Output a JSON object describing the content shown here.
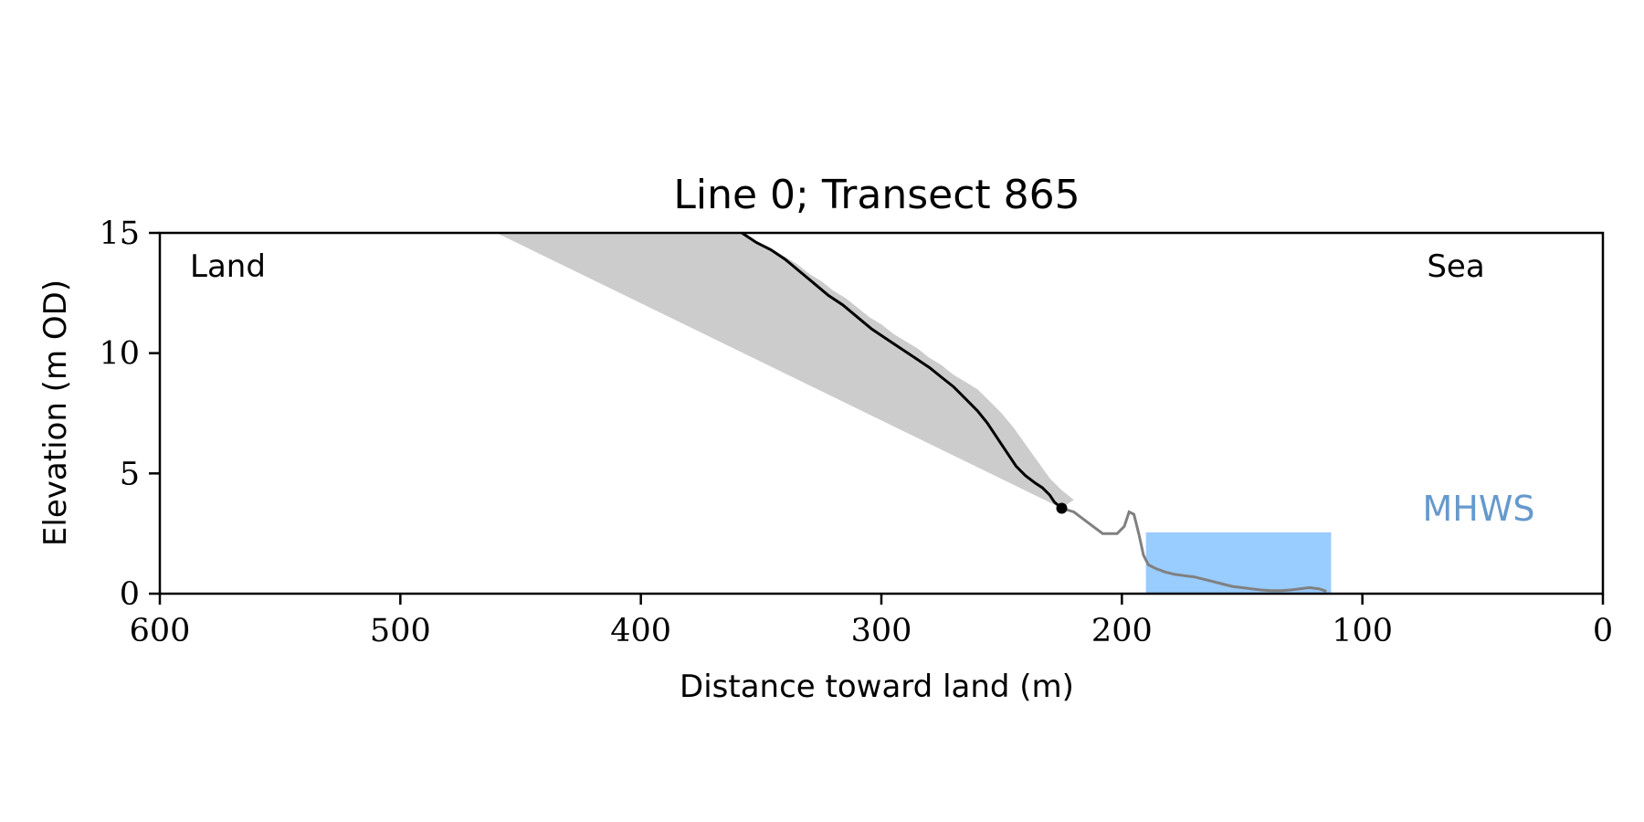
{
  "chart_data": {
    "type": "line",
    "title": "Line 0; Transect 865",
    "xlabel": "Distance toward land (m)",
    "ylabel": "Elevation (m OD)",
    "xlim": [
      600,
      0
    ],
    "ylim": [
      0,
      15
    ],
    "x_ticks": [
      600,
      500,
      400,
      300,
      200,
      100,
      0
    ],
    "y_ticks": [
      0,
      5,
      10,
      15
    ],
    "grid": false,
    "annotations": {
      "left": "Land",
      "right": "Sea",
      "mhws_label": "MHWS"
    },
    "mhws": {
      "x_start": 190,
      "x_end": 113,
      "elevation": 2.55
    },
    "marker_point": {
      "x": 225,
      "y": 3.55
    },
    "shaded_area": {
      "upper": [
        [
          358,
          15
        ],
        [
          355,
          14.8
        ],
        [
          350,
          14.5
        ],
        [
          345,
          14.3
        ],
        [
          340,
          14.0
        ],
        [
          335,
          13.7
        ],
        [
          330,
          13.3
        ],
        [
          325,
          13.0
        ],
        [
          320,
          12.6
        ],
        [
          315,
          12.3
        ],
        [
          310,
          11.9
        ],
        [
          305,
          11.5
        ],
        [
          300,
          11.2
        ],
        [
          295,
          10.8
        ],
        [
          290,
          10.5
        ],
        [
          285,
          10.2
        ],
        [
          280,
          9.8
        ],
        [
          275,
          9.5
        ],
        [
          270,
          9.1
        ],
        [
          265,
          8.8
        ],
        [
          260,
          8.5
        ],
        [
          255,
          8.0
        ],
        [
          250,
          7.5
        ],
        [
          245,
          6.9
        ],
        [
          240,
          6.2
        ],
        [
          235,
          5.5
        ],
        [
          230,
          4.8
        ],
        [
          225,
          4.3
        ],
        [
          220,
          3.9
        ],
        [
          225,
          3.55
        ]
      ],
      "lower": [
        [
          225,
          3.55
        ],
        [
          460,
          15
        ]
      ]
    },
    "series": [
      {
        "role": "cliff profile",
        "color": "#000000",
        "x": [
          358,
          352,
          346,
          340,
          334,
          328,
          322,
          316,
          310,
          304,
          298,
          292,
          286,
          280,
          275,
          270,
          265,
          260,
          256,
          252,
          248,
          244,
          240,
          236,
          233,
          230,
          228,
          225
        ],
        "y": [
          15.0,
          14.6,
          14.3,
          13.9,
          13.4,
          12.9,
          12.4,
          12.0,
          11.5,
          11.0,
          10.6,
          10.2,
          9.8,
          9.4,
          9.0,
          8.6,
          8.1,
          7.6,
          7.1,
          6.5,
          5.9,
          5.3,
          4.9,
          4.6,
          4.4,
          4.1,
          3.8,
          3.55
        ]
      },
      {
        "role": "foreshore profile",
        "color": "#808080",
        "x": [
          225,
          220,
          216,
          212,
          208,
          205,
          202,
          199,
          197,
          195,
          193,
          191,
          189,
          186,
          182,
          178,
          174,
          170,
          166,
          162,
          158,
          154,
          150,
          146,
          142,
          138,
          134,
          130,
          126,
          122,
          118,
          115
        ],
        "y": [
          3.55,
          3.4,
          3.1,
          2.8,
          2.5,
          2.5,
          2.5,
          2.8,
          3.4,
          3.3,
          2.5,
          1.6,
          1.2,
          1.05,
          0.9,
          0.8,
          0.75,
          0.7,
          0.6,
          0.5,
          0.4,
          0.3,
          0.25,
          0.2,
          0.15,
          0.12,
          0.12,
          0.15,
          0.2,
          0.25,
          0.2,
          0.1
        ]
      }
    ]
  }
}
